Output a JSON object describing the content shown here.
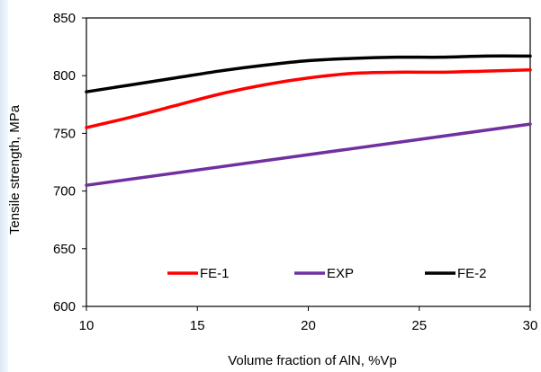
{
  "chart_data": {
    "type": "line",
    "title": "",
    "xlabel": "Volume fraction of AlN, %Vp",
    "ylabel": "Tensile strength, MPa",
    "xlim": [
      10,
      30
    ],
    "ylim": [
      600,
      850
    ],
    "xticks": [
      10,
      15,
      20,
      25,
      30
    ],
    "yticks": [
      600,
      650,
      700,
      750,
      800,
      850
    ],
    "grid": false,
    "legend_position": "bottom-center, inside plot",
    "series": [
      {
        "name": "FE-1",
        "color": "#ff0000",
        "x": [
          10,
          12,
          14,
          16,
          18,
          20,
          22,
          24,
          26,
          28,
          30
        ],
        "y": [
          755,
          764,
          774,
          784,
          792,
          798,
          802,
          803,
          803,
          804,
          805
        ]
      },
      {
        "name": "EXP",
        "color": "#7030a0",
        "x": [
          10,
          30
        ],
        "y": [
          705,
          758
        ]
      },
      {
        "name": "FE-2",
        "color": "#000000",
        "x": [
          10,
          12,
          14,
          16,
          18,
          20,
          22,
          24,
          26,
          28,
          30
        ],
        "y": [
          786,
          792,
          798,
          804,
          809,
          813,
          815,
          816,
          816,
          817,
          817
        ]
      }
    ]
  }
}
